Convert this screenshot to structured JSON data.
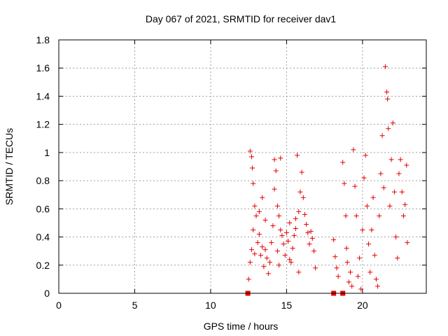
{
  "chart_data": {
    "type": "scatter",
    "title": "Day 067 of 2021, SRMTID for receiver dav1",
    "xlabel": "GPS time / hours",
    "ylabel": "SRMTID / TECUs",
    "xlim": [
      0,
      24.2
    ],
    "ylim": [
      0,
      1.8
    ],
    "xticks": [
      0,
      5,
      10,
      15,
      20
    ],
    "xtick_labels": [
      "0",
      "5",
      "10",
      "15",
      "20"
    ],
    "yticks": [
      0,
      0.2,
      0.4,
      0.6,
      0.8,
      1.0,
      1.2,
      1.4,
      1.6,
      1.8
    ],
    "ytick_labels": [
      "0",
      "0.2",
      "0.4",
      "0.6",
      "0.8",
      "1",
      "1.2",
      "1.4",
      "1.6",
      "1.8"
    ],
    "grid": true,
    "marker": "+",
    "color": "#e60000",
    "series": [
      {
        "name": "SRMTID",
        "points": [
          [
            12.5,
            0.1
          ],
          [
            12.6,
            0.22
          ],
          [
            12.7,
            0.31
          ],
          [
            12.8,
            0.45
          ],
          [
            12.9,
            0.28
          ],
          [
            12.6,
            1.01
          ],
          [
            12.7,
            0.97
          ],
          [
            12.75,
            0.89
          ],
          [
            12.8,
            0.78
          ],
          [
            12.9,
            0.62
          ],
          [
            13.0,
            0.55
          ],
          [
            13.1,
            0.36
          ],
          [
            13.2,
            0.42
          ],
          [
            13.3,
            0.27
          ],
          [
            13.4,
            0.33
          ],
          [
            13.5,
            0.19
          ],
          [
            13.6,
            0.31
          ],
          [
            13.2,
            0.58
          ],
          [
            13.4,
            0.68
          ],
          [
            13.6,
            0.52
          ],
          [
            13.7,
            0.25
          ],
          [
            13.8,
            0.14
          ],
          [
            13.9,
            0.22
          ],
          [
            14.0,
            0.36
          ],
          [
            14.1,
            0.48
          ],
          [
            14.2,
            0.74
          ],
          [
            14.3,
            0.87
          ],
          [
            14.2,
            0.95
          ],
          [
            14.4,
            0.62
          ],
          [
            14.5,
            0.55
          ],
          [
            14.6,
            0.45
          ],
          [
            14.4,
            0.3
          ],
          [
            14.5,
            0.2
          ],
          [
            14.6,
            0.96
          ],
          [
            14.7,
            0.41
          ],
          [
            14.8,
            0.35
          ],
          [
            14.9,
            0.27
          ],
          [
            15.0,
            0.43
          ],
          [
            15.1,
            0.37
          ],
          [
            15.2,
            0.5
          ],
          [
            15.3,
            0.22
          ],
          [
            15.4,
            0.32
          ],
          [
            15.5,
            0.41
          ],
          [
            15.6,
            0.53
          ],
          [
            15.7,
            0.98
          ],
          [
            15.6,
            0.46
          ],
          [
            15.8,
            0.58
          ],
          [
            15.9,
            0.72
          ],
          [
            16.0,
            0.86
          ],
          [
            16.1,
            0.68
          ],
          [
            16.2,
            0.56
          ],
          [
            16.3,
            0.49
          ],
          [
            16.4,
            0.43
          ],
          [
            16.5,
            0.35
          ],
          [
            16.6,
            0.44
          ],
          [
            16.7,
            0.39
          ],
          [
            16.8,
            0.3
          ],
          [
            16.9,
            0.18
          ],
          [
            15.8,
            0.15
          ],
          [
            15.2,
            0.24
          ],
          [
            18.1,
            0.38
          ],
          [
            18.2,
            0.26
          ],
          [
            18.3,
            0.18
          ],
          [
            18.4,
            0.12
          ],
          [
            18.7,
            0.93
          ],
          [
            18.8,
            0.78
          ],
          [
            18.9,
            0.55
          ],
          [
            18.95,
            0.32
          ],
          [
            19.0,
            0.22
          ],
          [
            19.1,
            0.08
          ],
          [
            19.2,
            0.15
          ],
          [
            19.3,
            0.05
          ],
          [
            19.4,
            1.02
          ],
          [
            19.5,
            0.76
          ],
          [
            19.6,
            0.55
          ],
          [
            19.7,
            0.12
          ],
          [
            19.8,
            0.25
          ],
          [
            19.9,
            0.03
          ],
          [
            20.0,
            0.45
          ],
          [
            20.1,
            0.82
          ],
          [
            20.2,
            0.98
          ],
          [
            20.3,
            0.62
          ],
          [
            20.4,
            0.35
          ],
          [
            20.5,
            0.15
          ],
          [
            20.6,
            0.45
          ],
          [
            20.7,
            0.68
          ],
          [
            20.8,
            0.27
          ],
          [
            20.9,
            0.1
          ],
          [
            21.0,
            0.05
          ],
          [
            21.1,
            0.55
          ],
          [
            21.2,
            0.85
          ],
          [
            21.3,
            1.12
          ],
          [
            21.4,
            0.75
          ],
          [
            21.5,
            1.61
          ],
          [
            21.6,
            1.43
          ],
          [
            21.65,
            1.38
          ],
          [
            21.7,
            1.17
          ],
          [
            21.8,
            0.62
          ],
          [
            21.9,
            0.95
          ],
          [
            22.0,
            1.21
          ],
          [
            22.1,
            0.72
          ],
          [
            22.2,
            0.4
          ],
          [
            22.3,
            0.25
          ],
          [
            22.4,
            0.85
          ],
          [
            22.5,
            0.95
          ],
          [
            22.6,
            0.72
          ],
          [
            22.7,
            0.55
          ],
          [
            22.8,
            0.63
          ],
          [
            22.9,
            0.91
          ],
          [
            22.95,
            0.36
          ]
        ]
      }
    ],
    "gap_markers": [
      12.45,
      18.1,
      18.7
    ]
  }
}
